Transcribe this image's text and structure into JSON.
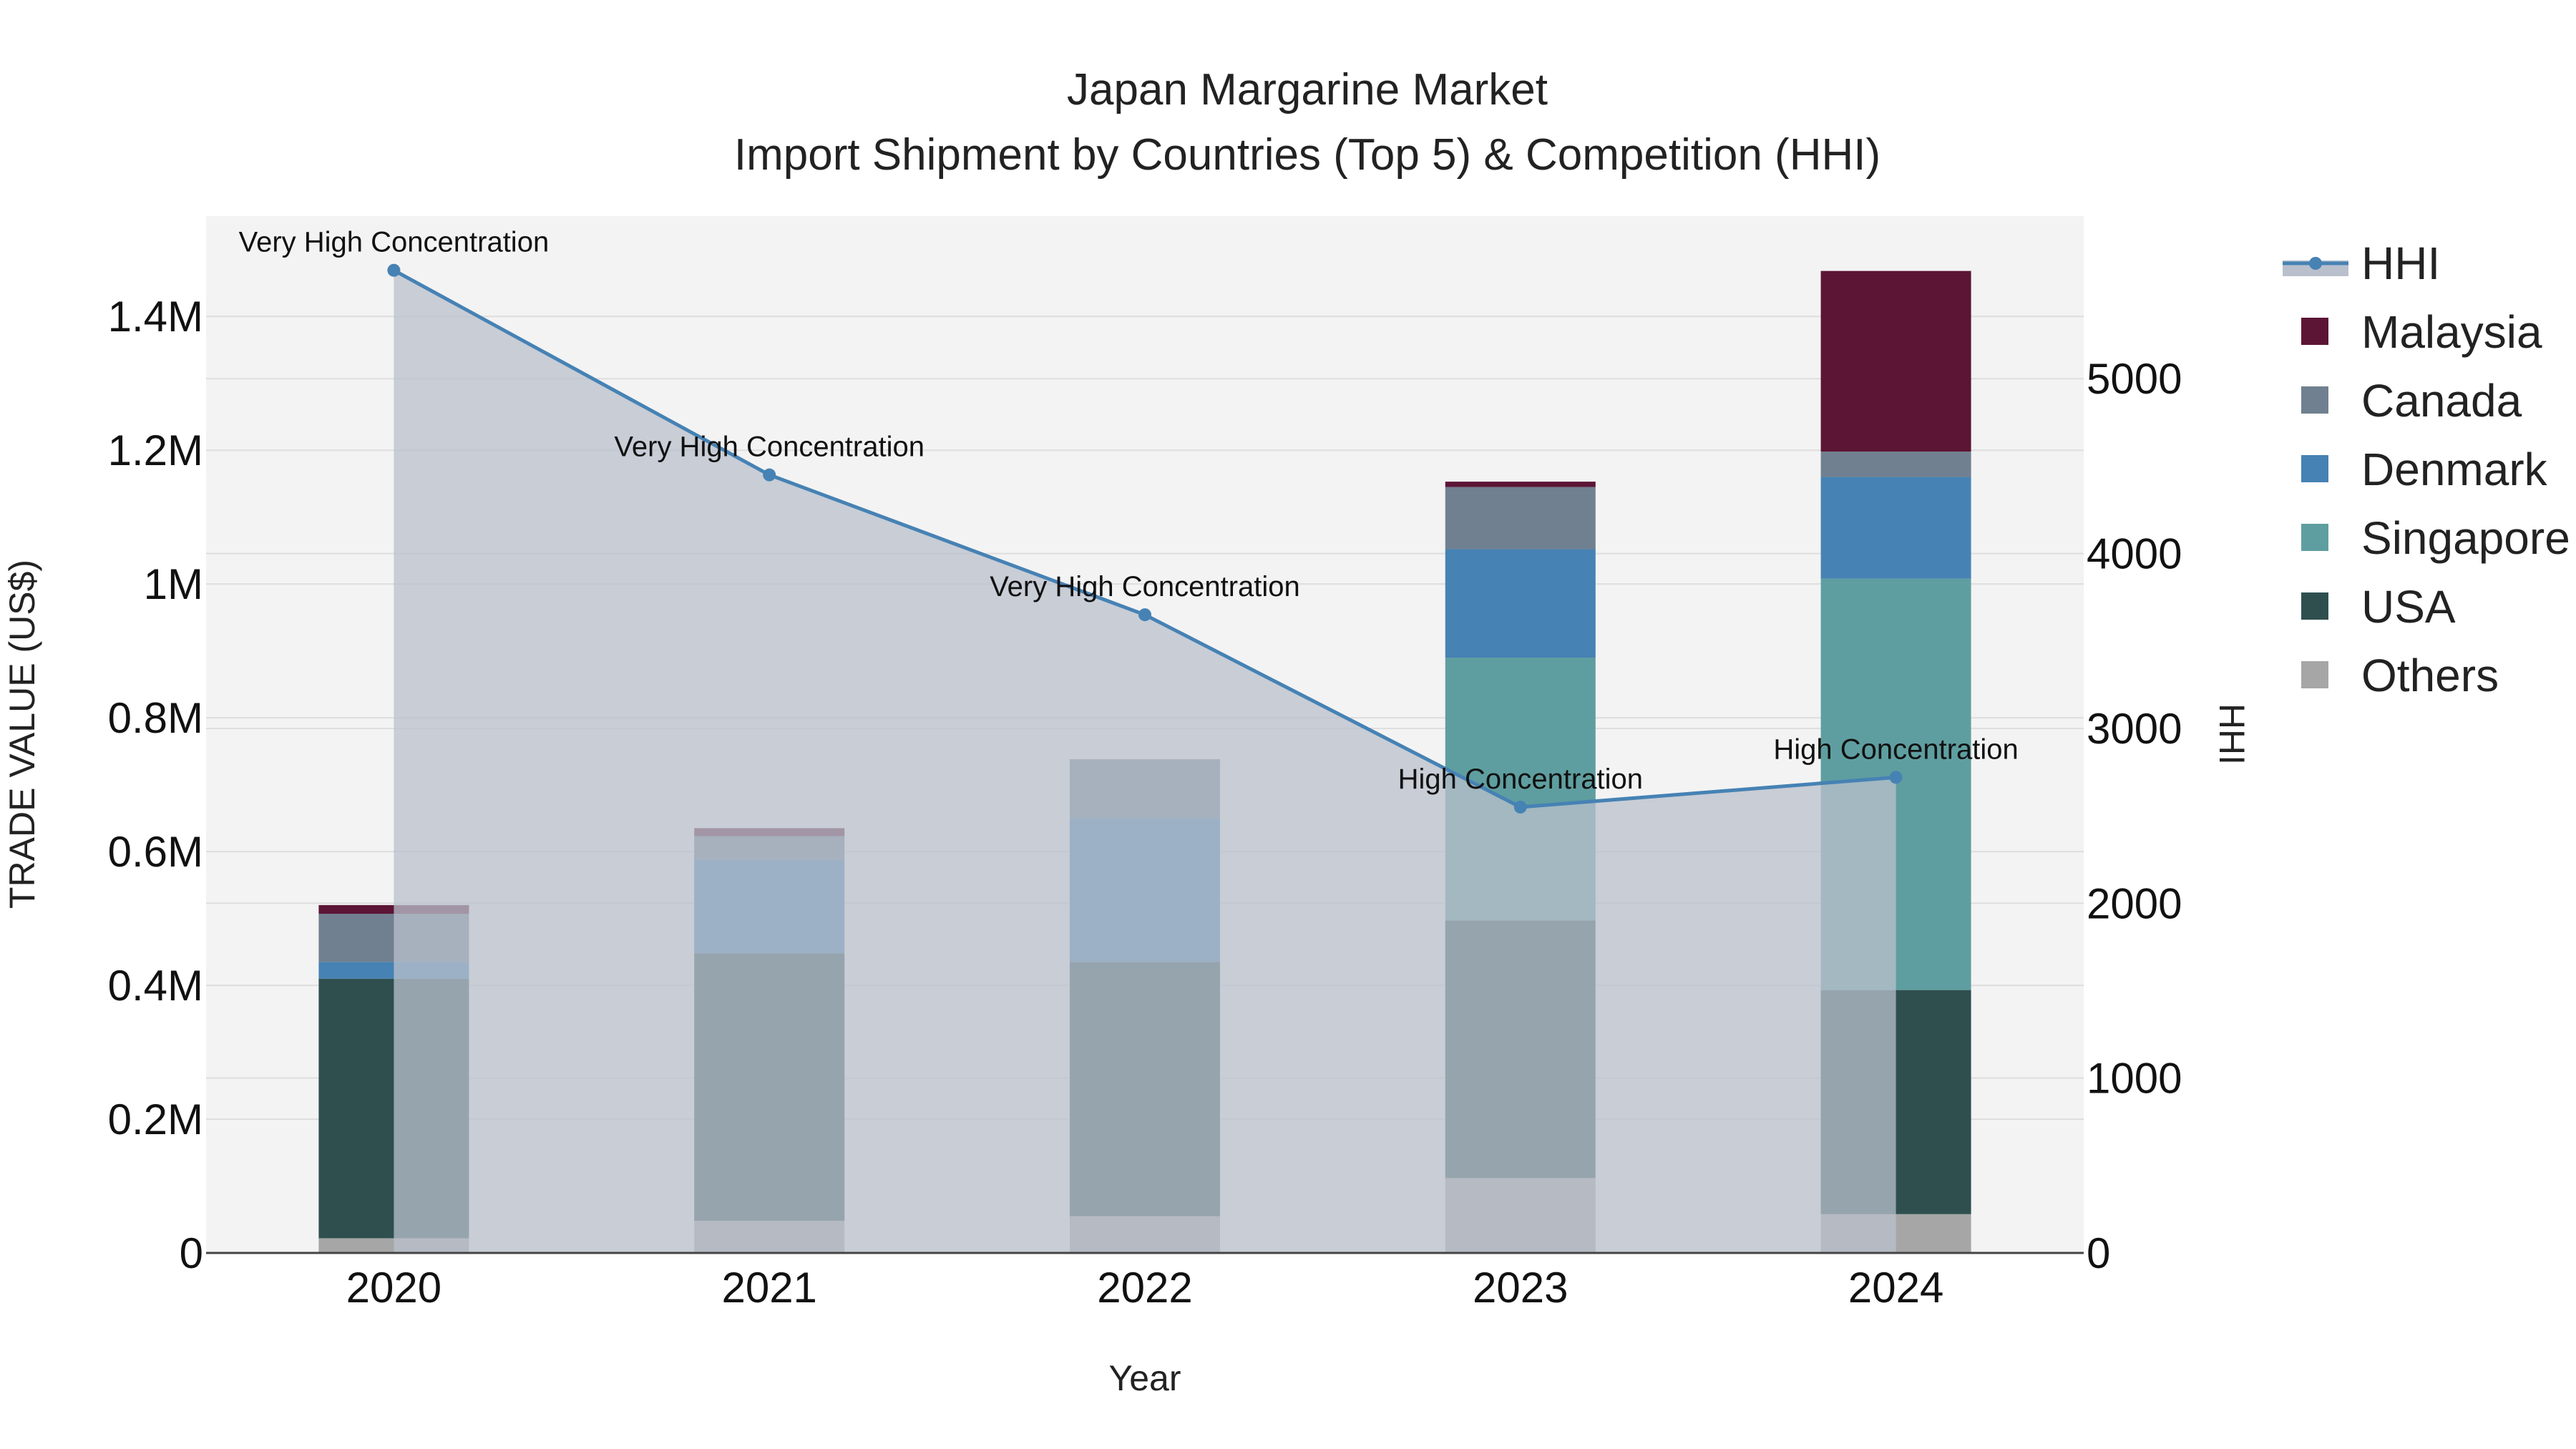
{
  "chart_data": {
    "type": "bar",
    "title_line1": "Japan Margarine Market",
    "title_line2": "Import Shipment by Countries (Top 5) & Competition (HHI)",
    "xlabel": "Year",
    "ylabel": "TRADE VALUE (US$)",
    "y2label": "HHI",
    "categories": [
      "2020",
      "2021",
      "2022",
      "2023",
      "2024"
    ],
    "ylim": [
      0,
      1550000
    ],
    "y2lim": [
      0,
      5930
    ],
    "y_ticks": [
      {
        "value": 0,
        "label": "0"
      },
      {
        "value": 200000,
        "label": "0.2M"
      },
      {
        "value": 400000,
        "label": "0.4M"
      },
      {
        "value": 600000,
        "label": "0.6M"
      },
      {
        "value": 800000,
        "label": "0.8M"
      },
      {
        "value": 1000000,
        "label": "1M"
      },
      {
        "value": 1200000,
        "label": "1.2M"
      },
      {
        "value": 1400000,
        "label": "1.4M"
      }
    ],
    "y2_ticks": [
      {
        "value": 0,
        "label": "0"
      },
      {
        "value": 1000,
        "label": "1000"
      },
      {
        "value": 2000,
        "label": "2000"
      },
      {
        "value": 3000,
        "label": "3000"
      },
      {
        "value": 4000,
        "label": "4000"
      },
      {
        "value": 5000,
        "label": "5000"
      }
    ],
    "series": [
      {
        "name": "Others",
        "color": "#a6a6a6",
        "values": [
          22000,
          48000,
          55000,
          112000,
          58000
        ]
      },
      {
        "name": "USA",
        "color": "#2f4f4f",
        "values": [
          388000,
          400000,
          380000,
          385000,
          335000
        ]
      },
      {
        "name": "Singapore",
        "color": "#5f9ea0",
        "values": [
          0,
          0,
          0,
          393000,
          615000
        ]
      },
      {
        "name": "Denmark",
        "color": "#4682b4",
        "values": [
          25000,
          140000,
          215000,
          162000,
          152000
        ]
      },
      {
        "name": "Canada",
        "color": "#708090",
        "values": [
          72000,
          35000,
          88000,
          93000,
          38000
        ]
      },
      {
        "name": "Malaysia",
        "color": "#5c1535",
        "values": [
          13000,
          12000,
          0,
          8000,
          270000
        ]
      }
    ],
    "legend_order": [
      "HHI",
      "Malaysia",
      "Canada",
      "Denmark",
      "Singapore",
      "USA",
      "Others"
    ],
    "hhi": {
      "name": "HHI",
      "color": "#4682b4",
      "values": [
        5620,
        4450,
        3650,
        2550,
        2720
      ],
      "labels": [
        "Very High Concentration",
        "Very High Concentration",
        "Very High Concentration",
        "High Concentration",
        "High Concentration"
      ]
    },
    "colors": {
      "plot_bg": "#f3f3f3",
      "grid": "#dedede",
      "hhi_fill": "#b9c0cc",
      "axis_line": "#444444"
    }
  }
}
